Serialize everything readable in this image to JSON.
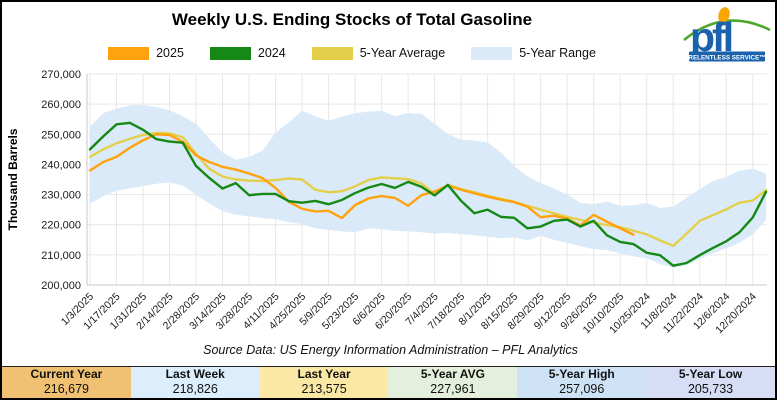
{
  "title": "Weekly U.S. Ending Stocks of Total Gasoline",
  "logo": {
    "text": "pfl",
    "tagline": "RELENTLESS SERVICE™",
    "blue": "#1A63AC",
    "swoosh_green": "#4FA82E",
    "dot_orange": "#F7A700"
  },
  "legend": [
    {
      "label": "2025",
      "color": "#FFA20D"
    },
    {
      "label": "2024",
      "color": "#158815"
    },
    {
      "label": "5-Year Average",
      "color": "#E4CF4B"
    },
    {
      "label": "5-Year Range",
      "color": "#DAEAF8"
    }
  ],
  "y_axis": {
    "title": "Thousand Barrels",
    "tick_labels": [
      "270,000",
      "260,000",
      "250,000",
      "240,000",
      "230,000",
      "220,000",
      "210,000",
      "200,000"
    ]
  },
  "source_note": "Source Data: US Energy Information Administration – PFL Analytics",
  "stats": {
    "items": [
      {
        "label": "Current Year",
        "value": "216,679",
        "color": "#F0C172"
      },
      {
        "label": "Last Week",
        "value": "218,826",
        "color": "#DCEDFB"
      },
      {
        "label": "Last Year",
        "value": "213,575",
        "color": "#FAE8A4"
      },
      {
        "label": "5-Year AVG",
        "value": "227,961",
        "color": "#E4F0DB"
      },
      {
        "label": "5-Year High",
        "value": "257,096",
        "color": "#CEE2F6"
      },
      {
        "label": "5-Year Low",
        "value": "205,733",
        "color": "#D7DDF4"
      }
    ]
  },
  "chart_data": {
    "type": "line",
    "title": "Weekly U.S. Ending Stocks of Total Gasoline",
    "xlabel": "",
    "ylabel": "Thousand Barrels",
    "ylim": [
      200000,
      270000
    ],
    "grid": true,
    "legend_position": "top",
    "weeks": 52,
    "x_tick_labels": [
      "1/3/2025",
      "1/17/2025",
      "1/31/2025",
      "2/14/2025",
      "2/28/2025",
      "3/14/2025",
      "3/28/2025",
      "4/11/2025",
      "4/25/2025",
      "5/9/2025",
      "5/23/2025",
      "6/6/2025",
      "6/20/2025",
      "7/4/2025",
      "7/18/2025",
      "8/1/2025",
      "8/15/2025",
      "8/29/2025",
      "9/12/2025",
      "9/26/2025",
      "10/10/2025",
      "10/25/2024",
      "11/8/2024",
      "11/22/2024",
      "12/6/2024",
      "12/20/2024"
    ],
    "x_tick_weeks": [
      1,
      3,
      5,
      7,
      9,
      11,
      13,
      15,
      17,
      19,
      21,
      23,
      25,
      27,
      29,
      31,
      33,
      35,
      37,
      39,
      41,
      43,
      45,
      47,
      49,
      51
    ],
    "series": [
      {
        "name": "5-Year Range",
        "kind": "band",
        "color": "#DAEAF8",
        "upper": [
          252500,
          257000,
          258500,
          259500,
          259800,
          259000,
          258000,
          256000,
          253500,
          248500,
          244000,
          241500,
          242500,
          244500,
          250500,
          254000,
          257800,
          256000,
          254500,
          255800,
          257000,
          257500,
          257800,
          256000,
          257000,
          256800,
          253500,
          250000,
          248200,
          248000,
          247300,
          244000,
          239500,
          236000,
          233800,
          232000,
          230000,
          227300,
          226800,
          227700,
          226200,
          226500,
          227200,
          225600,
          226000,
          229000,
          231800,
          234500,
          235800,
          238000,
          238600,
          237000
        ],
        "lower": [
          227000,
          229500,
          231300,
          232000,
          232800,
          233600,
          234000,
          233000,
          230000,
          227000,
          224500,
          223300,
          222800,
          222200,
          221800,
          220800,
          220200,
          218800,
          218300,
          217800,
          217500,
          218800,
          218500,
          218000,
          217800,
          217500,
          217000,
          217300,
          216800,
          216500,
          216000,
          215500,
          215800,
          214800,
          216300,
          215000,
          214000,
          212900,
          211900,
          211600,
          210500,
          209500,
          208900,
          207000,
          205733,
          206500,
          208700,
          210500,
          212200,
          214000,
          216800,
          221600
        ]
      },
      {
        "name": "5-Year Average",
        "kind": "line",
        "color": "#E4CF4B",
        "values": [
          242500,
          245000,
          247000,
          248500,
          249800,
          250400,
          250300,
          249000,
          243500,
          238500,
          236000,
          235000,
          234600,
          234500,
          234800,
          235300,
          235000,
          231600,
          230800,
          231100,
          232700,
          234800,
          235700,
          235400,
          235100,
          233700,
          230300,
          233200,
          231800,
          230800,
          229600,
          228600,
          227600,
          226300,
          225000,
          223800,
          222600,
          221600,
          220700,
          219900,
          219200,
          218000,
          216800,
          214800,
          213000,
          217000,
          221300,
          223200,
          225100,
          227300,
          228000,
          231500
        ]
      },
      {
        "name": "2025",
        "kind": "line",
        "color": "#FFA20D",
        "values": [
          238000,
          240800,
          242500,
          245500,
          248000,
          250000,
          249800,
          247500,
          243000,
          240800,
          239200,
          238300,
          237000,
          235500,
          232200,
          227600,
          225300,
          224400,
          224600,
          222200,
          226500,
          228700,
          229500,
          228900,
          226300,
          229800,
          231000,
          233000,
          231600,
          230400,
          229300,
          228300,
          227500,
          226000,
          222500,
          223000,
          222000,
          219800,
          223300,
          221000,
          218826,
          216679
        ]
      },
      {
        "name": "2024",
        "kind": "line",
        "color": "#158815",
        "values": [
          245000,
          249300,
          253300,
          253800,
          251500,
          248400,
          247600,
          247200,
          239500,
          235500,
          232000,
          233800,
          229800,
          230200,
          230200,
          227800,
          227300,
          227900,
          226800,
          228200,
          230500,
          232300,
          233500,
          232200,
          234200,
          232600,
          229700,
          233200,
          227900,
          223800,
          225000,
          222600,
          222300,
          218800,
          219400,
          221300,
          221700,
          219400,
          221300,
          216500,
          214300,
          213575,
          210700,
          209900,
          206400,
          207300,
          209900,
          212300,
          214500,
          217500,
          222400,
          230900
        ]
      }
    ]
  }
}
